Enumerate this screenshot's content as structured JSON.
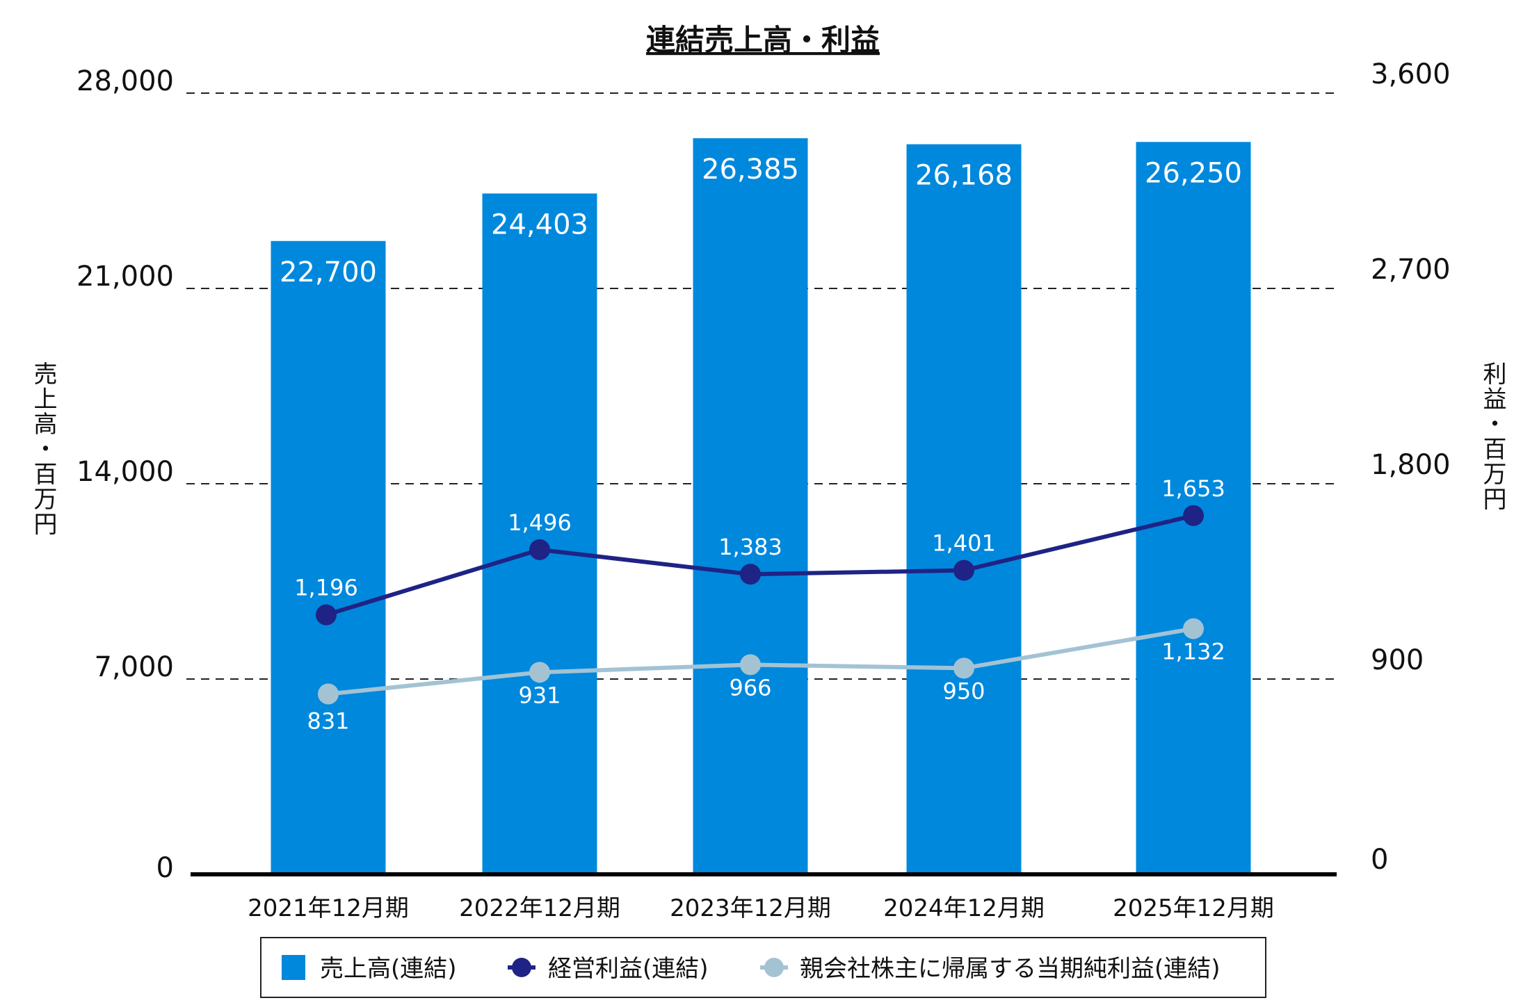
{
  "chart_data": {
    "type": "bar+line",
    "title": "連結売上高・利益",
    "categories": [
      "2021年12月期",
      "2022年12月期",
      "2023年12月期",
      "2024年12月期",
      "2025年12月期"
    ],
    "y_left": {
      "label": "売上高・百万円",
      "range": [
        0,
        28000
      ],
      "ticks": [
        "0",
        "7,000",
        "14,000",
        "21,000",
        "28,000"
      ]
    },
    "y_right": {
      "label": "利益・百万円",
      "range": [
        0,
        3600
      ],
      "ticks": [
        "0",
        "900",
        "1,800",
        "2,700",
        "3,600"
      ]
    },
    "grid": true,
    "legend_position": "bottom",
    "series": [
      {
        "name": "売上高(連結)",
        "type": "bar",
        "axis": "left",
        "color": "#0088dd",
        "values": [
          22700,
          24403,
          26385,
          26168,
          26250
        ],
        "labels": [
          "22,700",
          "24,403",
          "26,385",
          "26,168",
          "26,250"
        ]
      },
      {
        "name": "経営利益(連結)",
        "type": "line",
        "axis": "right",
        "color": "#1f2385",
        "values": [
          1196,
          1496,
          1383,
          1401,
          1653
        ],
        "labels": [
          "1,196",
          "1,496",
          "1,383",
          "1,401",
          "1,653"
        ]
      },
      {
        "name": "親会社株主に帰属する当期純利益(連結)",
        "type": "line",
        "axis": "right",
        "color": "#a3c3d3",
        "values": [
          831,
          931,
          966,
          950,
          1132
        ],
        "labels": [
          "831",
          "931",
          "966",
          "950",
          "1,132"
        ]
      }
    ]
  }
}
